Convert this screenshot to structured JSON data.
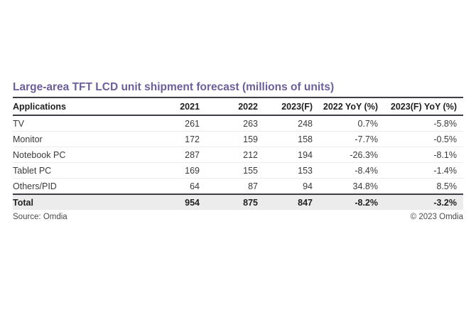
{
  "title": "Large-area TFT LCD unit shipment forecast (millions of units)",
  "table": {
    "columns": [
      "Applications",
      "2021",
      "2022",
      "2023(F)",
      "2022 YoY (%)",
      "2023(F) YoY (%)"
    ],
    "rows": [
      [
        "TV",
        "261",
        "263",
        "248",
        "0.7%",
        "-5.8%"
      ],
      [
        "Monitor",
        "172",
        "159",
        "158",
        "-7.7%",
        "-0.5%"
      ],
      [
        "Notebook PC",
        "287",
        "212",
        "194",
        "-26.3%",
        "-8.1%"
      ],
      [
        "Tablet PC",
        "169",
        "155",
        "153",
        "-8.4%",
        "-1.4%"
      ],
      [
        "Others/PID",
        "64",
        "87",
        "94",
        "34.8%",
        "8.5%"
      ]
    ],
    "total_row": [
      "Total",
      "954",
      "875",
      "847",
      "-8.2%",
      "-3.2%"
    ]
  },
  "footer": {
    "source": "Source: Omdia",
    "copyright": "© 2023 Omdia"
  },
  "colors": {
    "title": "#6c5f9b",
    "rule_dark": "#3d3d44",
    "total_bg": "#ececec",
    "body_text": "#3a3a3a"
  },
  "chart_data": {
    "type": "table",
    "title": "Large-area TFT LCD unit shipment forecast (millions of units)",
    "columns": [
      "Applications",
      "2021",
      "2022",
      "2023(F)",
      "2022 YoY (%)",
      "2023(F) YoY (%)"
    ],
    "rows": [
      {
        "application": "TV",
        "2021": 261,
        "2022": 263,
        "2023f": 248,
        "yoy_2022_pct": 0.7,
        "yoy_2023f_pct": -5.8
      },
      {
        "application": "Monitor",
        "2021": 172,
        "2022": 159,
        "2023f": 158,
        "yoy_2022_pct": -7.7,
        "yoy_2023f_pct": -0.5
      },
      {
        "application": "Notebook PC",
        "2021": 287,
        "2022": 212,
        "2023f": 194,
        "yoy_2022_pct": -26.3,
        "yoy_2023f_pct": -8.1
      },
      {
        "application": "Tablet PC",
        "2021": 169,
        "2022": 155,
        "2023f": 153,
        "yoy_2022_pct": -8.4,
        "yoy_2023f_pct": -1.4
      },
      {
        "application": "Others/PID",
        "2021": 64,
        "2022": 87,
        "2023f": 94,
        "yoy_2022_pct": 34.8,
        "yoy_2023f_pct": 8.5
      }
    ],
    "total": {
      "application": "Total",
      "2021": 954,
      "2022": 875,
      "2023f": 847,
      "yoy_2022_pct": -8.2,
      "yoy_2023f_pct": -3.2
    },
    "source": "Source: Omdia",
    "copyright": "© 2023 Omdia"
  }
}
